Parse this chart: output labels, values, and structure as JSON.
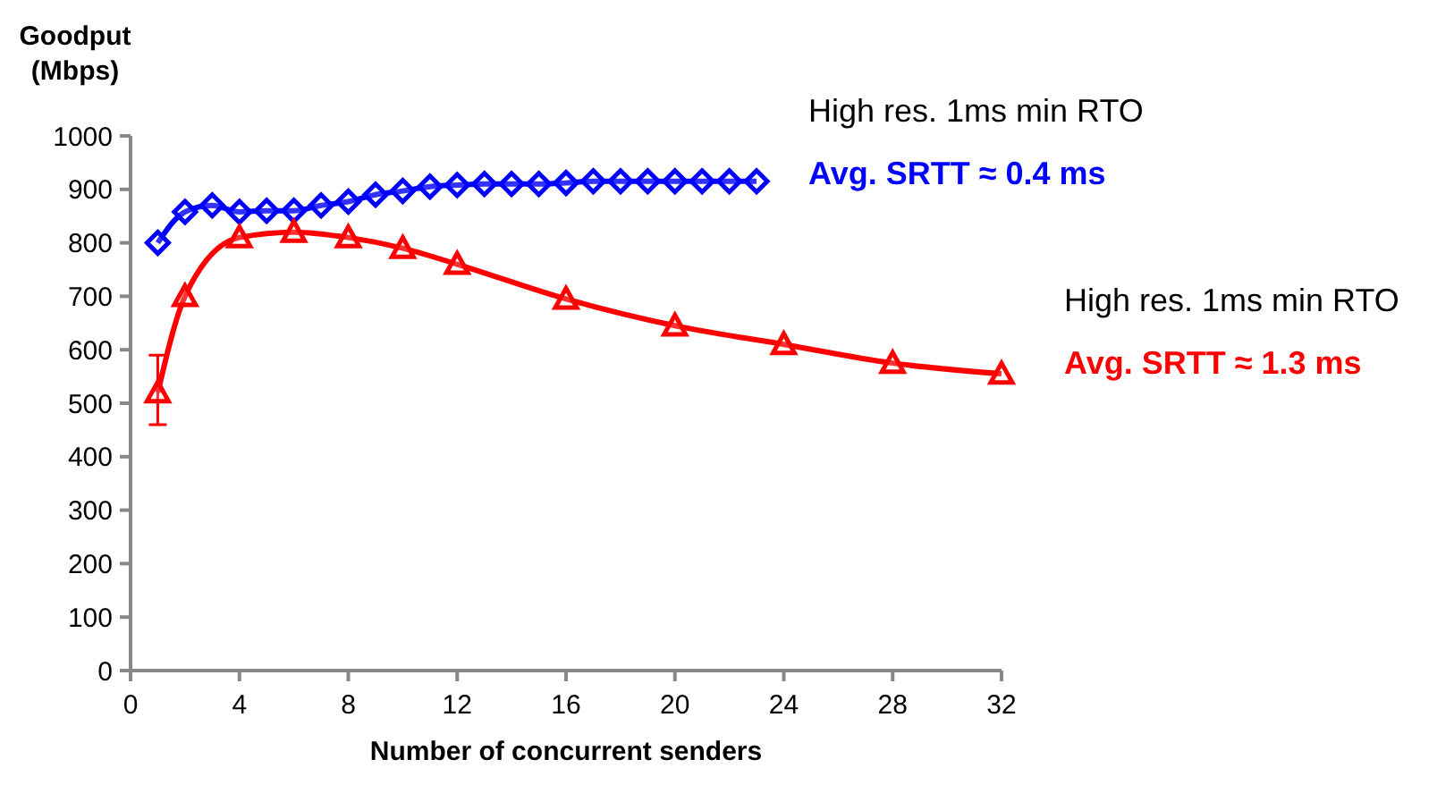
{
  "chart_data": {
    "type": "line",
    "xlabel": "Number of concurrent senders",
    "ylabel": "Goodput\n(Mbps)",
    "xlim": [
      0,
      32
    ],
    "xticks": [
      0,
      4,
      8,
      12,
      16,
      20,
      24,
      28,
      32
    ],
    "ylim": [
      0,
      1000
    ],
    "yticks": [
      0,
      100,
      200,
      300,
      400,
      500,
      600,
      700,
      800,
      900,
      1000
    ],
    "grid": false,
    "series": [
      {
        "name": "Avg. SRTT ≈ 0.4 ms",
        "color": "#0000ff",
        "marker": "diamond",
        "x": [
          1,
          2,
          3,
          4,
          5,
          6,
          7,
          8,
          9,
          10,
          11,
          12,
          13,
          14,
          15,
          16,
          17,
          18,
          19,
          20,
          21,
          22,
          23
        ],
        "values": [
          800,
          858,
          870,
          858,
          860,
          860,
          870,
          877,
          890,
          897,
          905,
          908,
          910,
          910,
          910,
          912,
          915,
          915,
          915,
          915,
          915,
          915,
          915
        ]
      },
      {
        "name": "Avg. SRTT ≈ 1.3 ms",
        "color": "#ff0000",
        "marker": "triangle",
        "x": [
          1,
          2,
          4,
          6,
          8,
          10,
          12,
          16,
          20,
          24,
          28,
          32
        ],
        "values": [
          520,
          700,
          810,
          820,
          810,
          790,
          760,
          695,
          645,
          610,
          575,
          555
        ],
        "errors": [
          [
            460,
            590
          ],
          null,
          null,
          null,
          null,
          null,
          null,
          null,
          null,
          null,
          null,
          null
        ]
      }
    ],
    "annotations": [
      "High res. 1ms min RTO",
      "High res. 1ms min RTO"
    ]
  }
}
